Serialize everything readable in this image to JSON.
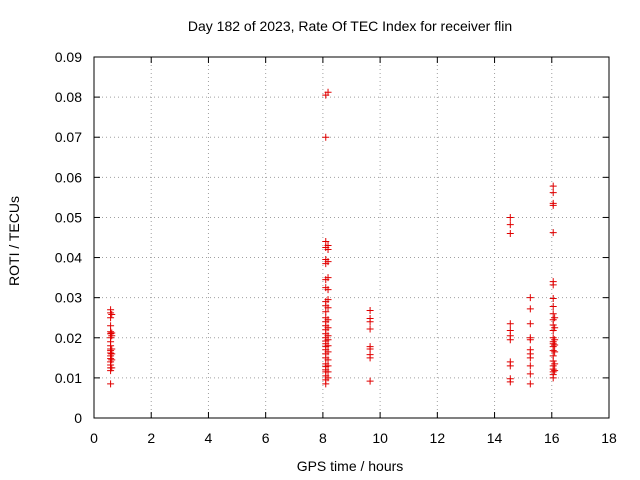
{
  "chart_data": {
    "type": "scatter",
    "title": "Day 182 of 2023, Rate Of TEC Index for receiver flin",
    "xlabel": "GPS time / hours",
    "ylabel": "ROTI / TECUs",
    "xlim": [
      0,
      18
    ],
    "ylim": [
      0,
      0.09
    ],
    "xticks": [
      "0",
      "2",
      "4",
      "6",
      "8",
      "10",
      "12",
      "14",
      "16",
      "18"
    ],
    "yticks": [
      "0",
      "0.01",
      "0.02",
      "0.03",
      "0.04",
      "0.05",
      "0.06",
      "0.07",
      "0.08",
      "0.09"
    ],
    "grid": true,
    "marker": "+",
    "color": "#e00000",
    "series": [
      {
        "points": [
          [
            0.58,
            0.0085
          ],
          [
            0.58,
            0.0118
          ],
          [
            0.58,
            0.0125
          ],
          [
            0.58,
            0.0132
          ],
          [
            0.58,
            0.014
          ],
          [
            0.58,
            0.0148
          ],
          [
            0.58,
            0.0155
          ],
          [
            0.58,
            0.0162
          ],
          [
            0.58,
            0.0168
          ],
          [
            0.58,
            0.0172
          ],
          [
            0.58,
            0.018
          ],
          [
            0.58,
            0.019
          ],
          [
            0.58,
            0.02
          ],
          [
            0.58,
            0.021
          ],
          [
            0.58,
            0.0215
          ],
          [
            0.58,
            0.023
          ],
          [
            0.58,
            0.025
          ],
          [
            0.58,
            0.0262
          ],
          [
            0.58,
            0.027
          ],
          [
            0.62,
            0.0125
          ],
          [
            0.62,
            0.0145
          ],
          [
            0.62,
            0.016
          ],
          [
            0.62,
            0.0172
          ],
          [
            0.62,
            0.0205
          ],
          [
            0.62,
            0.0212
          ],
          [
            0.62,
            0.0258
          ],
          [
            8.1,
            0.0085
          ],
          [
            8.1,
            0.0095
          ],
          [
            8.1,
            0.0105
          ],
          [
            8.1,
            0.0115
          ],
          [
            8.1,
            0.012
          ],
          [
            8.1,
            0.0128
          ],
          [
            8.1,
            0.0135
          ],
          [
            8.1,
            0.015
          ],
          [
            8.1,
            0.016
          ],
          [
            8.1,
            0.017
          ],
          [
            8.1,
            0.0178
          ],
          [
            8.1,
            0.0185
          ],
          [
            8.1,
            0.0192
          ],
          [
            8.1,
            0.02
          ],
          [
            8.1,
            0.021
          ],
          [
            8.1,
            0.022
          ],
          [
            8.1,
            0.023
          ],
          [
            8.1,
            0.024
          ],
          [
            8.1,
            0.025
          ],
          [
            8.1,
            0.0265
          ],
          [
            8.1,
            0.028
          ],
          [
            8.1,
            0.029
          ],
          [
            8.1,
            0.0325
          ],
          [
            8.1,
            0.0345
          ],
          [
            8.1,
            0.0385
          ],
          [
            8.1,
            0.0395
          ],
          [
            8.1,
            0.0425
          ],
          [
            8.1,
            0.044
          ],
          [
            8.1,
            0.07
          ],
          [
            8.1,
            0.0805
          ],
          [
            8.18,
            0.01
          ],
          [
            8.18,
            0.0115
          ],
          [
            8.18,
            0.013
          ],
          [
            8.18,
            0.0145
          ],
          [
            8.18,
            0.0165
          ],
          [
            8.18,
            0.018
          ],
          [
            8.18,
            0.0195
          ],
          [
            8.18,
            0.0205
          ],
          [
            8.18,
            0.0225
          ],
          [
            8.18,
            0.0245
          ],
          [
            8.18,
            0.0275
          ],
          [
            8.18,
            0.0295
          ],
          [
            8.18,
            0.032
          ],
          [
            8.18,
            0.035
          ],
          [
            8.18,
            0.039
          ],
          [
            8.18,
            0.042
          ],
          [
            8.18,
            0.043
          ],
          [
            8.18,
            0.0812
          ],
          [
            9.65,
            0.0092
          ],
          [
            9.65,
            0.015
          ],
          [
            9.65,
            0.0158
          ],
          [
            9.65,
            0.0172
          ],
          [
            9.65,
            0.0178
          ],
          [
            9.65,
            0.0222
          ],
          [
            9.65,
            0.024
          ],
          [
            9.65,
            0.0248
          ],
          [
            9.65,
            0.0268
          ],
          [
            14.55,
            0.009
          ],
          [
            14.55,
            0.0098
          ],
          [
            14.55,
            0.013
          ],
          [
            14.55,
            0.014
          ],
          [
            14.55,
            0.0195
          ],
          [
            14.55,
            0.0205
          ],
          [
            14.55,
            0.0218
          ],
          [
            14.55,
            0.0235
          ],
          [
            14.55,
            0.046
          ],
          [
            14.55,
            0.0482
          ],
          [
            14.55,
            0.05
          ],
          [
            15.25,
            0.0085
          ],
          [
            15.25,
            0.011
          ],
          [
            15.25,
            0.013
          ],
          [
            15.25,
            0.015
          ],
          [
            15.25,
            0.016
          ],
          [
            15.25,
            0.017
          ],
          [
            15.25,
            0.0195
          ],
          [
            15.25,
            0.02
          ],
          [
            15.25,
            0.0235
          ],
          [
            15.25,
            0.0272
          ],
          [
            15.25,
            0.03
          ],
          [
            16.05,
            0.01
          ],
          [
            16.05,
            0.0108
          ],
          [
            16.05,
            0.0115
          ],
          [
            16.05,
            0.0122
          ],
          [
            16.05,
            0.013
          ],
          [
            16.05,
            0.0142
          ],
          [
            16.05,
            0.0155
          ],
          [
            16.05,
            0.0168
          ],
          [
            16.05,
            0.0178
          ],
          [
            16.05,
            0.0185
          ],
          [
            16.05,
            0.019
          ],
          [
            16.05,
            0.02
          ],
          [
            16.05,
            0.0218
          ],
          [
            16.05,
            0.0232
          ],
          [
            16.05,
            0.0245
          ],
          [
            16.05,
            0.026
          ],
          [
            16.05,
            0.0278
          ],
          [
            16.05,
            0.0298
          ],
          [
            16.05,
            0.0332
          ],
          [
            16.05,
            0.034
          ],
          [
            16.05,
            0.0462
          ],
          [
            16.05,
            0.053
          ],
          [
            16.05,
            0.0535
          ],
          [
            16.05,
            0.0562
          ],
          [
            16.05,
            0.0578
          ],
          [
            16.1,
            0.0118
          ],
          [
            16.1,
            0.0135
          ],
          [
            16.1,
            0.0165
          ],
          [
            16.1,
            0.0182
          ],
          [
            16.1,
            0.0195
          ],
          [
            16.1,
            0.0225
          ],
          [
            16.1,
            0.025
          ]
        ]
      }
    ]
  }
}
